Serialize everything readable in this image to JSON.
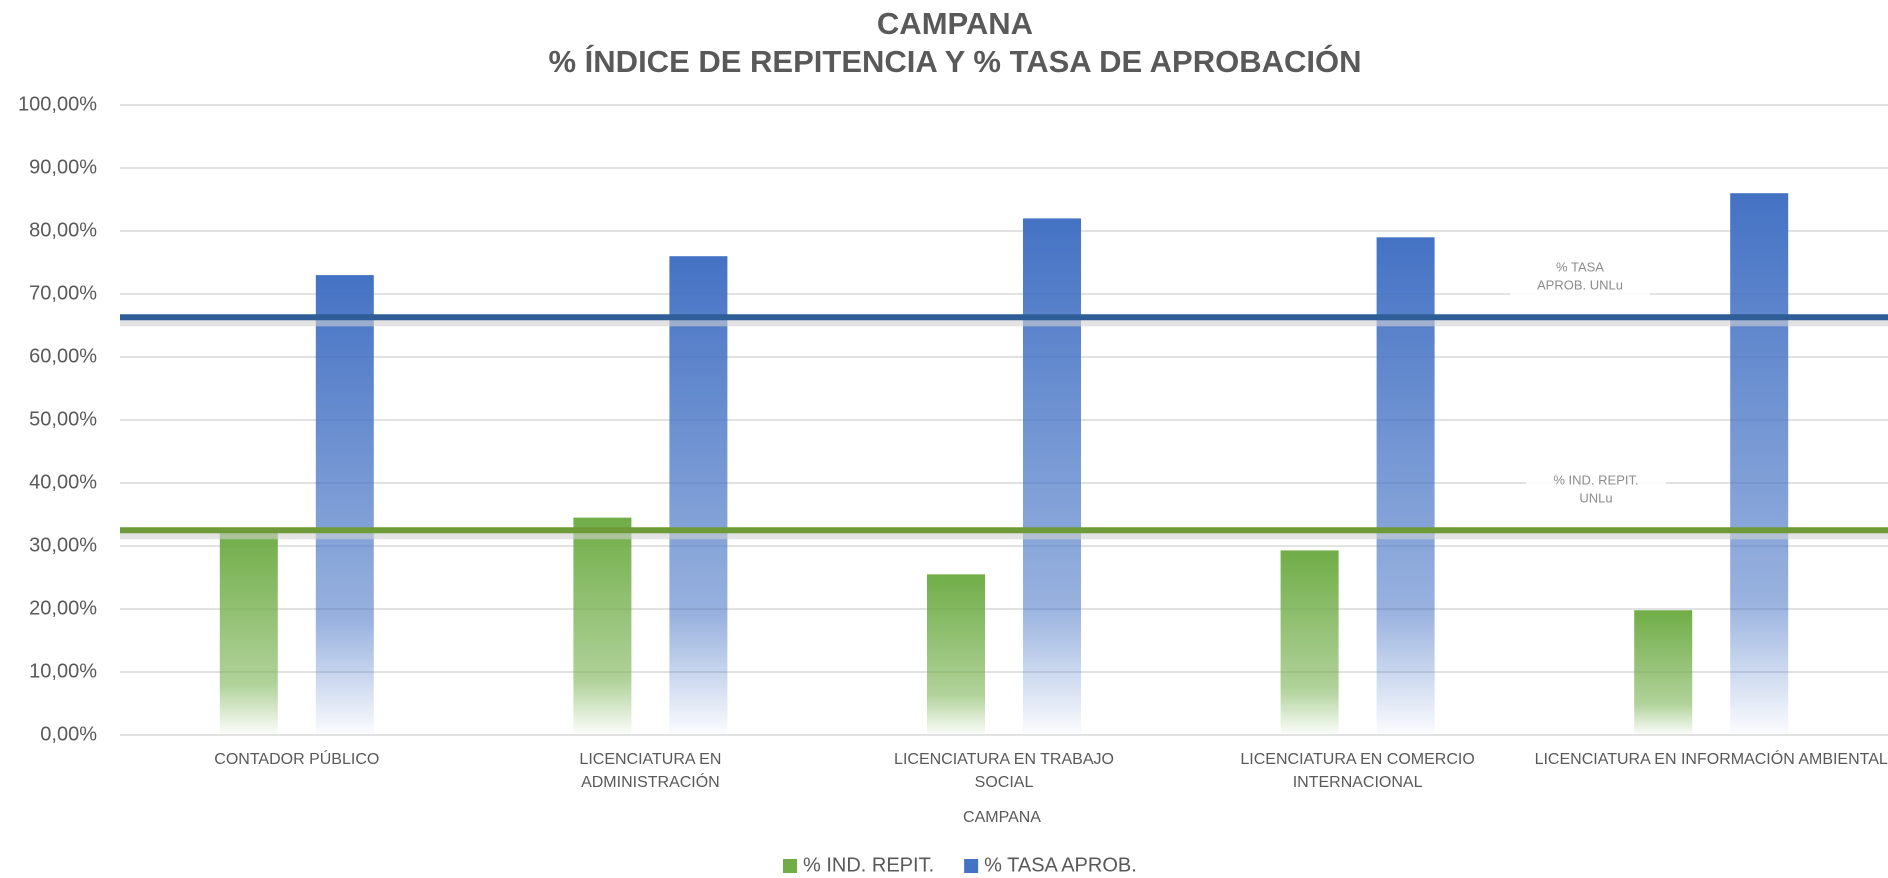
{
  "chart_data": {
    "type": "bar",
    "title": "CAMPANA",
    "subtitle": "% ÍNDICE DE REPITENCIA Y % TASA DE APROBACIÓN",
    "x_label": "CAMPANA",
    "categories": [
      "CONTADOR PÚBLICO",
      "LICENCIATURA EN ADMINISTRACIÓN",
      "LICENCIATURA EN TRABAJO SOCIAL",
      "LICENCIATURA EN COMERCIO INTERNACIONAL",
      "LICENCIATURA EN INFORMACIÓN AMBIENTAL"
    ],
    "series": [
      {
        "name": "% IND. REPIT.",
        "color": "#70ad47",
        "values": [
          32.5,
          34.5,
          25.5,
          29.3,
          19.8
        ]
      },
      {
        "name": "% TASA APROB.",
        "color": "#4472c4",
        "values": [
          73,
          76,
          82,
          79,
          86
        ]
      }
    ],
    "reference_lines": [
      {
        "label_lines": [
          "% TASA",
          "APROB.  UNLu"
        ],
        "value": 66.3,
        "color": "#2f5d97"
      },
      {
        "label_lines": [
          "% IND. REPIT.",
          "UNLu"
        ],
        "value": 32.5,
        "color": "#6f9a38"
      }
    ],
    "ylim": [
      0,
      100
    ],
    "yticks": [
      {
        "value": 0,
        "label": "0,00%"
      },
      {
        "value": 10,
        "label": "10,00%"
      },
      {
        "value": 20,
        "label": "20,00%"
      },
      {
        "value": 30,
        "label": "30,00%"
      },
      {
        "value": 40,
        "label": "40,00%"
      },
      {
        "value": 50,
        "label": "50,00%"
      },
      {
        "value": 60,
        "label": "60,00%"
      },
      {
        "value": 70,
        "label": "70,00%"
      },
      {
        "value": 80,
        "label": "80,00%"
      },
      {
        "value": 90,
        "label": "90,00%"
      },
      {
        "value": 100,
        "label": "100,00%"
      }
    ],
    "grid": true,
    "legend": "bottom"
  }
}
